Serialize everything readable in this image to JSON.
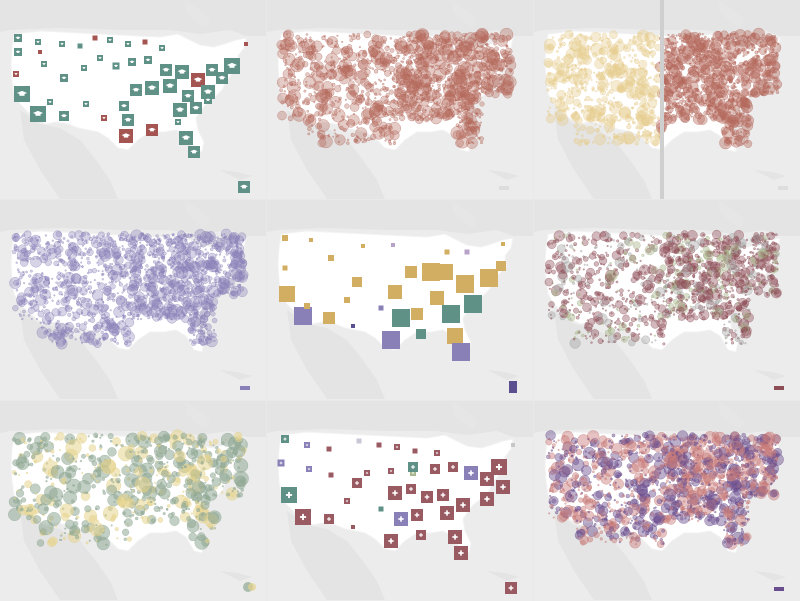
{
  "colors": {
    "land": "#ffffff",
    "background": "#ececec",
    "outside_land": "#e4e4e4",
    "teal": "#5f9187",
    "red": "#a45451",
    "rust": "#b56a5d",
    "rust_light": "#d9a79d",
    "gold": "#d2ae62",
    "gold_light": "#e7cd8f",
    "purple": "#8a80b8",
    "purple_dark": "#5b4f8f",
    "maroon": "#8e4e57",
    "gray_green": "#8fa894",
    "yellow": "#e5d38d",
    "pink": "#c77b78",
    "violet": "#6a4d8f",
    "wine": "#9a5a62"
  },
  "panels": [
    {
      "id": "p1",
      "theme": "education",
      "icon": "graduation-cap-icon",
      "style": "squares"
    },
    {
      "id": "p2",
      "theme": "rust-dots",
      "style": "dots"
    },
    {
      "id": "p3",
      "theme": "rust-gold-split",
      "style": "dots"
    },
    {
      "id": "p4",
      "theme": "purple-dots",
      "style": "dots"
    },
    {
      "id": "p5",
      "theme": "gold-teal-purple-squares",
      "style": "squares"
    },
    {
      "id": "p6",
      "theme": "dark-purple-dots",
      "style": "dots"
    },
    {
      "id": "p7",
      "theme": "green-yellow-dots",
      "style": "dots"
    },
    {
      "id": "p8",
      "theme": "medical",
      "icon": "medical-cross-icon",
      "style": "squares"
    },
    {
      "id": "p9",
      "theme": "pink-violet-dots",
      "style": "dots"
    }
  ]
}
